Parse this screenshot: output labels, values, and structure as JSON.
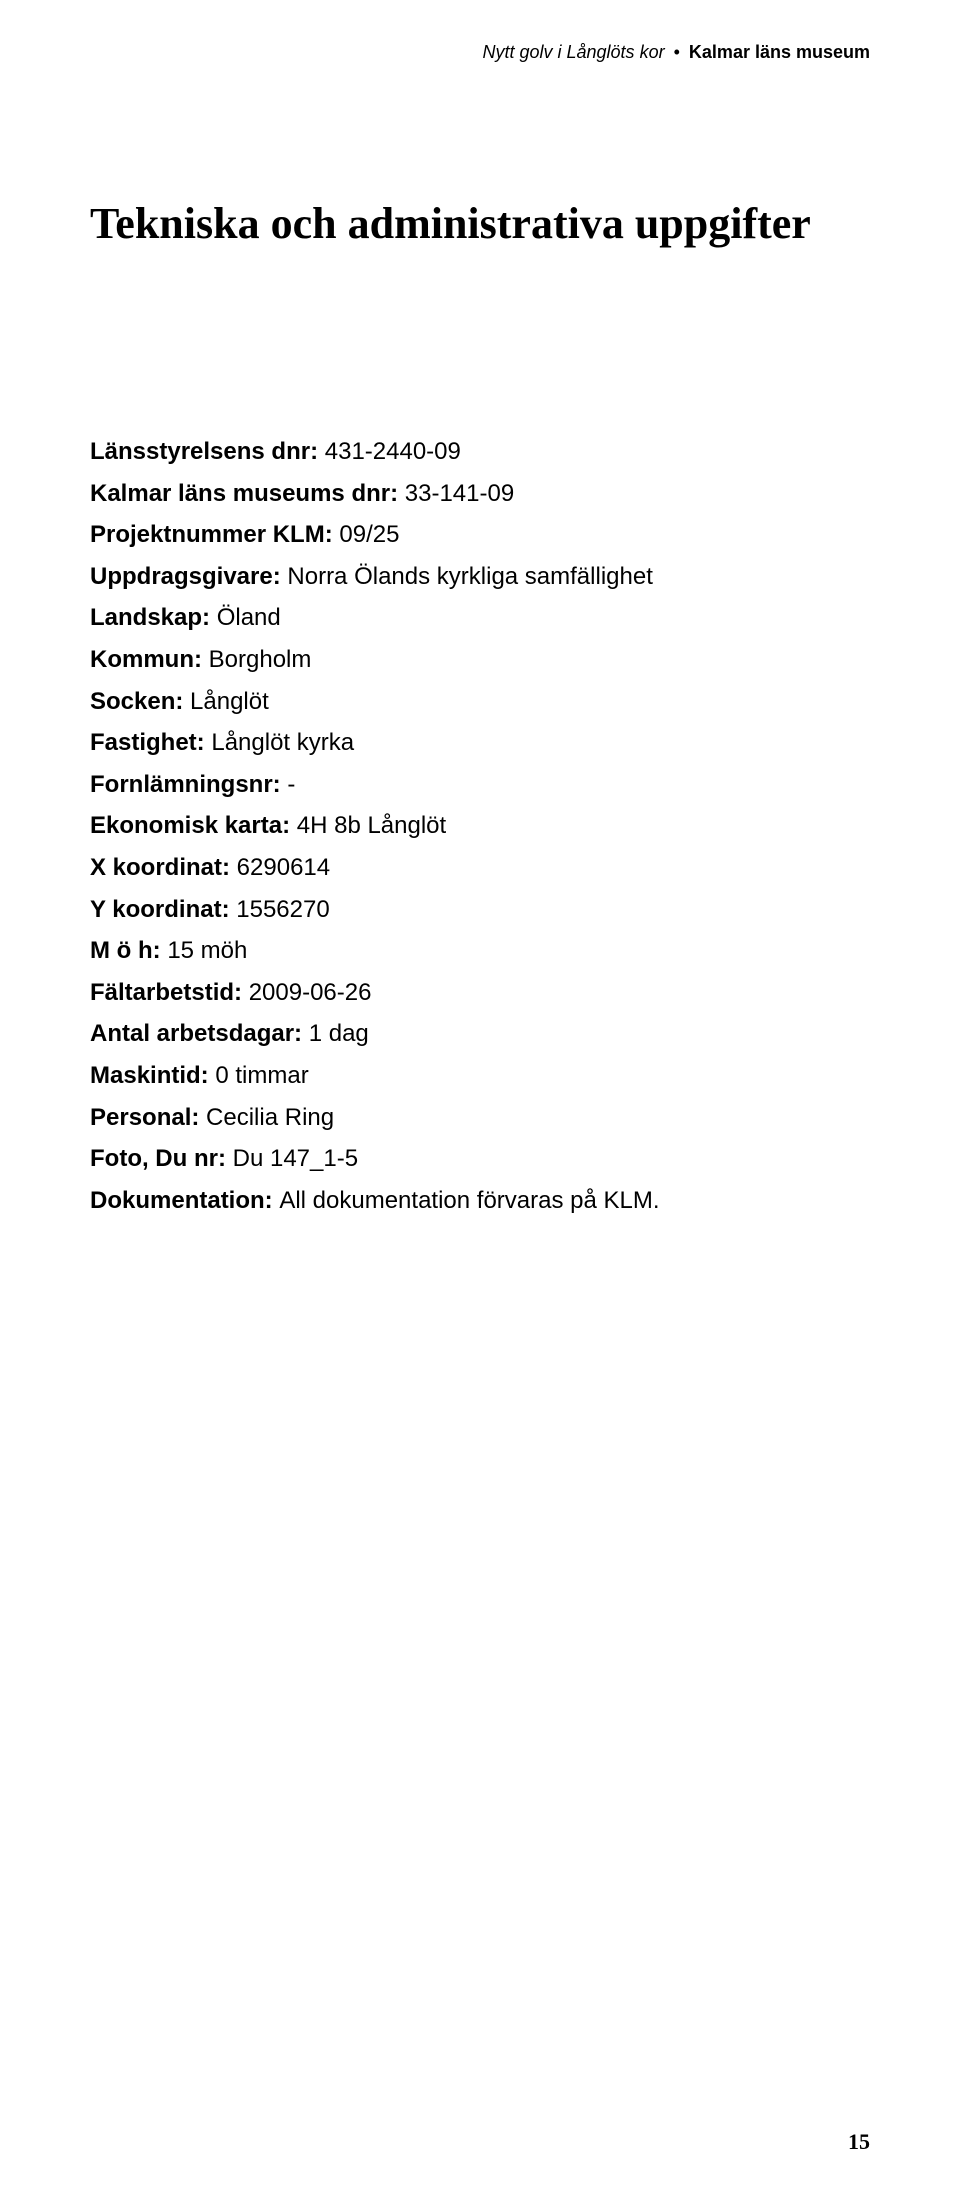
{
  "header": {
    "italic_part": "Nytt golv i Långlöts kor",
    "bullet": "•",
    "bold_part": "Kalmar läns museum"
  },
  "heading": "Tekniska och administrativa uppgifter",
  "fields": [
    {
      "label": "Länsstyrelsens dnr: ",
      "value": "431-2440-09"
    },
    {
      "label": "Kalmar läns museums dnr: ",
      "value": "33-141-09"
    },
    {
      "label": "Projektnummer KLM: ",
      "value": "09/25"
    },
    {
      "label": "Uppdragsgivare: ",
      "value": "Norra Ölands kyrkliga samfällighet"
    },
    {
      "label": "Landskap: ",
      "value": "Öland"
    },
    {
      "label": "Kommun: ",
      "value": "Borgholm"
    },
    {
      "label": "Socken: ",
      "value": "Långlöt"
    },
    {
      "label": "Fastighet: ",
      "value": "Långlöt kyrka"
    },
    {
      "label": "Fornlämningsnr: ",
      "value": "-"
    },
    {
      "label": "Ekonomisk karta: ",
      "value": "4H 8b Långlöt"
    },
    {
      "label": "X koordinat: ",
      "value": "6290614"
    },
    {
      "label": "Y koordinat: ",
      "value": "1556270"
    },
    {
      "label": "M ö h: ",
      "value": "15 möh"
    },
    {
      "label": "Fältarbetstid: ",
      "value": "2009-06-26"
    },
    {
      "label": "Antal arbetsdagar: ",
      "value": "1 dag"
    },
    {
      "label": "Maskintid: ",
      "value": "0 timmar"
    },
    {
      "label": "Personal: ",
      "value": "Cecilia Ring"
    },
    {
      "label": "Foto, Du nr: ",
      "value": "Du 147_1-5"
    },
    {
      "label": "Dokumentation: ",
      "value": "All dokumentation förvaras på KLM."
    }
  ],
  "page_number": "15"
}
